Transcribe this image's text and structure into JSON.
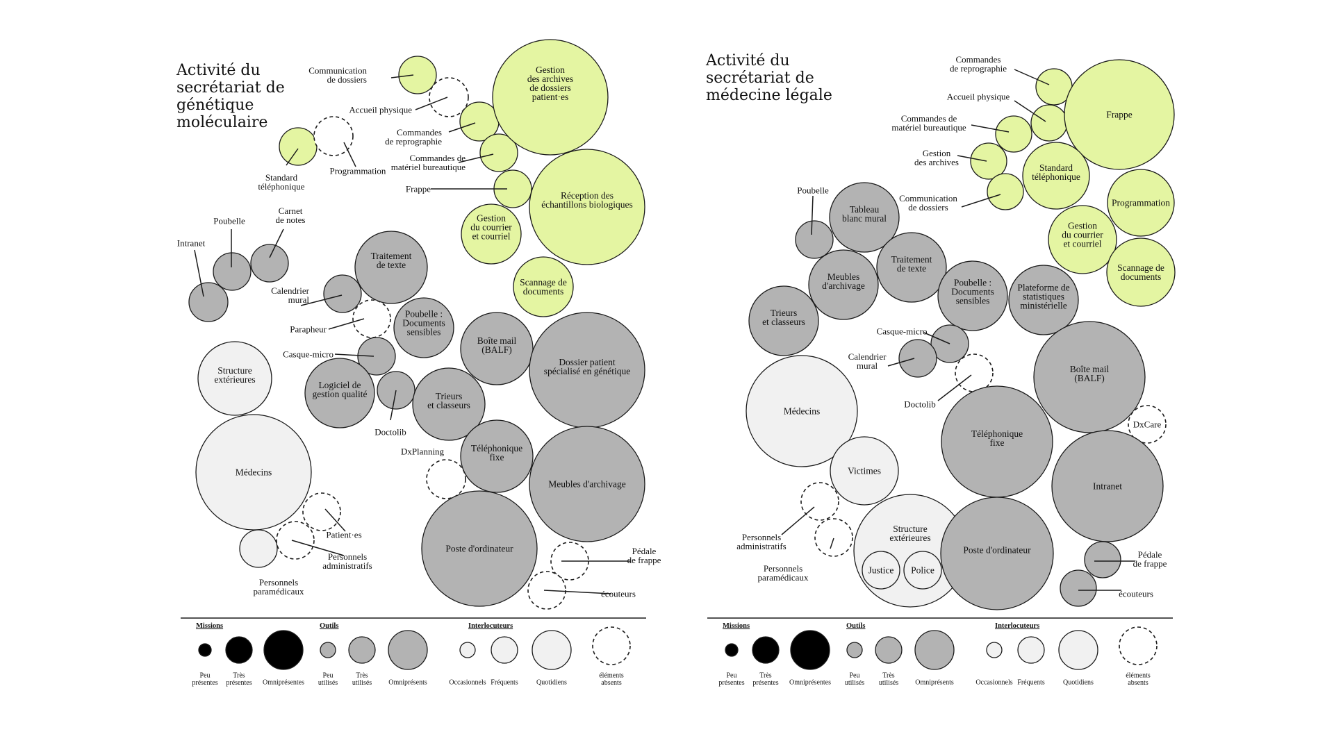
{
  "colors": {
    "mission": "#e4f5a2",
    "tool": "#b3b3b3",
    "interlocutor": "#f1f1f1",
    "absent": "#ffffff",
    "stroke": "#1a1a1a",
    "legend_mission": "#000000"
  },
  "icons": {
    "legend_missions": "filled-black-circle",
    "legend_outils": "filled-grey-circle",
    "legend_interlocuteurs": "light-circle",
    "legend_absent": "dashed-circle"
  },
  "legend": {
    "missions": {
      "heading": "Missions",
      "labels": [
        [
          "Peu",
          "présentes"
        ],
        [
          "Très",
          "présentes"
        ],
        [
          "Omniprésentes"
        ]
      ]
    },
    "outils": {
      "heading": "Outils",
      "labels": [
        [
          "Peu",
          "utilisés"
        ],
        [
          "Très",
          "utilisés"
        ],
        [
          "Omniprésents"
        ]
      ]
    },
    "interlocuteurs": {
      "heading": "Interlocuteurs",
      "labels": [
        [
          "Occasionnels"
        ],
        [
          "Fréquents"
        ],
        [
          "Quotidiens"
        ]
      ]
    },
    "absent": {
      "labels": [
        [
          "éléments",
          "absents"
        ]
      ]
    }
  },
  "diagrams": [
    {
      "title": [
        "Activité du",
        "secrétariat de",
        "génétique",
        "moléculaire"
      ],
      "nodes": [
        {
          "label": [
            "Communication",
            "de dossiers"
          ],
          "kind": "mission"
        },
        {
          "label": [
            "Accueil physique"
          ],
          "kind": "absent"
        },
        {
          "label": [
            "Commandes",
            "de reprographie"
          ],
          "kind": "mission"
        },
        {
          "label": [
            "Commandes de",
            "matériel bureautique"
          ],
          "kind": "mission"
        },
        {
          "label": [
            "Frappe"
          ],
          "kind": "mission"
        },
        {
          "label": [
            "Gestion",
            "des archives",
            "de dossiers",
            "patient·es"
          ],
          "kind": "mission"
        },
        {
          "label": [
            "Réception des",
            "échantillons biologiques"
          ],
          "kind": "mission"
        },
        {
          "label": [
            "Gestion",
            "du courrier",
            "et courriel"
          ],
          "kind": "mission"
        },
        {
          "label": [
            "Scannage de",
            "documents"
          ],
          "kind": "mission"
        },
        {
          "label": [
            "Standard",
            "téléphonique"
          ],
          "kind": "mission"
        },
        {
          "label": [
            "Programmation"
          ],
          "kind": "absent"
        },
        {
          "label": [
            "Intranet"
          ],
          "kind": "tool"
        },
        {
          "label": [
            "Poubelle"
          ],
          "kind": "tool"
        },
        {
          "label": [
            "Carnet",
            "de notes"
          ],
          "kind": "tool"
        },
        {
          "label": [
            "Traitement",
            "de texte"
          ],
          "kind": "tool"
        },
        {
          "label": [
            "Calendrier",
            "mural"
          ],
          "kind": "tool"
        },
        {
          "label": [
            "Parapheur"
          ],
          "kind": "absent"
        },
        {
          "label": [
            "Poubelle :",
            "Documents",
            "sensibles"
          ],
          "kind": "tool"
        },
        {
          "label": [
            "Boîte mail",
            "(BALF)"
          ],
          "kind": "tool"
        },
        {
          "label": [
            "Dossier patient",
            "spécialisé en génétique"
          ],
          "kind": "tool"
        },
        {
          "label": [
            "Casque-micro"
          ],
          "kind": "tool"
        },
        {
          "label": [
            "Logiciel de",
            "gestion qualité"
          ],
          "kind": "tool"
        },
        {
          "label": [
            "Doctolib"
          ],
          "kind": "tool"
        },
        {
          "label": [
            "Trieurs",
            "et classeurs"
          ],
          "kind": "tool"
        },
        {
          "label": [
            "DxPlanning"
          ],
          "kind": "absent"
        },
        {
          "label": [
            "Téléphonique",
            "fixe"
          ],
          "kind": "tool"
        },
        {
          "label": [
            "Meubles d'archivage"
          ],
          "kind": "tool"
        },
        {
          "label": [
            "Poste d'ordinateur"
          ],
          "kind": "tool"
        },
        {
          "label": [
            "Pédale",
            "de frappe"
          ],
          "kind": "absent"
        },
        {
          "label": [
            "écouteurs"
          ],
          "kind": "absent"
        },
        {
          "label": [
            "Structure",
            "extérieures"
          ],
          "kind": "interlocutor"
        },
        {
          "label": [
            "Médecins"
          ],
          "kind": "interlocutor"
        },
        {
          "label": [
            "Patient·es"
          ],
          "kind": "absent"
        },
        {
          "label": [
            "Personnels",
            "administratifs"
          ],
          "kind": "absent"
        },
        {
          "label": [
            "Personnels",
            "paramédicaux"
          ],
          "kind": "interlocutor"
        }
      ]
    },
    {
      "title": [
        "Activité du",
        "secrétariat de",
        "médecine légale"
      ],
      "nodes": [
        {
          "label": [
            "Commandes",
            "de reprographie"
          ],
          "kind": "mission"
        },
        {
          "label": [
            "Accueil physique"
          ],
          "kind": "mission"
        },
        {
          "label": [
            "Commandes de",
            "matériel bureautique"
          ],
          "kind": "mission"
        },
        {
          "label": [
            "Gestion",
            "des archives"
          ],
          "kind": "mission"
        },
        {
          "label": [
            "Communication",
            "de dossiers"
          ],
          "kind": "mission"
        },
        {
          "label": [
            "Frappe"
          ],
          "kind": "mission"
        },
        {
          "label": [
            "Standard",
            "téléphonique"
          ],
          "kind": "mission"
        },
        {
          "label": [
            "Programmation"
          ],
          "kind": "mission"
        },
        {
          "label": [
            "Gestion",
            "du courrier",
            "et courriel"
          ],
          "kind": "mission"
        },
        {
          "label": [
            "Scannage de",
            "documents"
          ],
          "kind": "mission"
        },
        {
          "label": [
            "Poubelle"
          ],
          "kind": "tool"
        },
        {
          "label": [
            "Tableau",
            "blanc mural"
          ],
          "kind": "tool"
        },
        {
          "label": [
            "Meubles",
            "d'archivage"
          ],
          "kind": "tool"
        },
        {
          "label": [
            "Traitement",
            "de texte"
          ],
          "kind": "tool"
        },
        {
          "label": [
            "Trieurs",
            "et classeurs"
          ],
          "kind": "tool"
        },
        {
          "label": [
            "Poubelle :",
            "Documents",
            "sensibles"
          ],
          "kind": "tool"
        },
        {
          "label": [
            "Plateforme de",
            "statistiques",
            "ministérielle"
          ],
          "kind": "tool"
        },
        {
          "label": [
            "Casque-micro"
          ],
          "kind": "tool"
        },
        {
          "label": [
            "Calendrier",
            "mural"
          ],
          "kind": "tool"
        },
        {
          "label": [
            "Doctolib"
          ],
          "kind": "absent"
        },
        {
          "label": [
            "Boîte mail",
            "(BALF)"
          ],
          "kind": "tool"
        },
        {
          "label": [
            "Médecins"
          ],
          "kind": "interlocutor"
        },
        {
          "label": [
            "Téléphonique",
            "fixe"
          ],
          "kind": "tool"
        },
        {
          "label": [
            "DxCare"
          ],
          "kind": "absent"
        },
        {
          "label": [
            "Intranet"
          ],
          "kind": "tool"
        },
        {
          "label": [
            "Victimes"
          ],
          "kind": "interlocutor"
        },
        {
          "label": [
            "Personnels",
            "administratifs"
          ],
          "kind": "absent"
        },
        {
          "label": [
            "Personnels",
            "paramédicaux"
          ],
          "kind": "absent"
        },
        {
          "label": [
            "Structure",
            "extérieures"
          ],
          "kind": "interlocutor"
        },
        {
          "label": [
            "Justice"
          ],
          "kind": "interlocutor"
        },
        {
          "label": [
            "Police"
          ],
          "kind": "interlocutor"
        },
        {
          "label": [
            "Poste d'ordinateur"
          ],
          "kind": "tool"
        },
        {
          "label": [
            "Pédale",
            "de frappe"
          ],
          "kind": "tool"
        },
        {
          "label": [
            "écouteurs"
          ],
          "kind": "tool"
        }
      ]
    }
  ]
}
